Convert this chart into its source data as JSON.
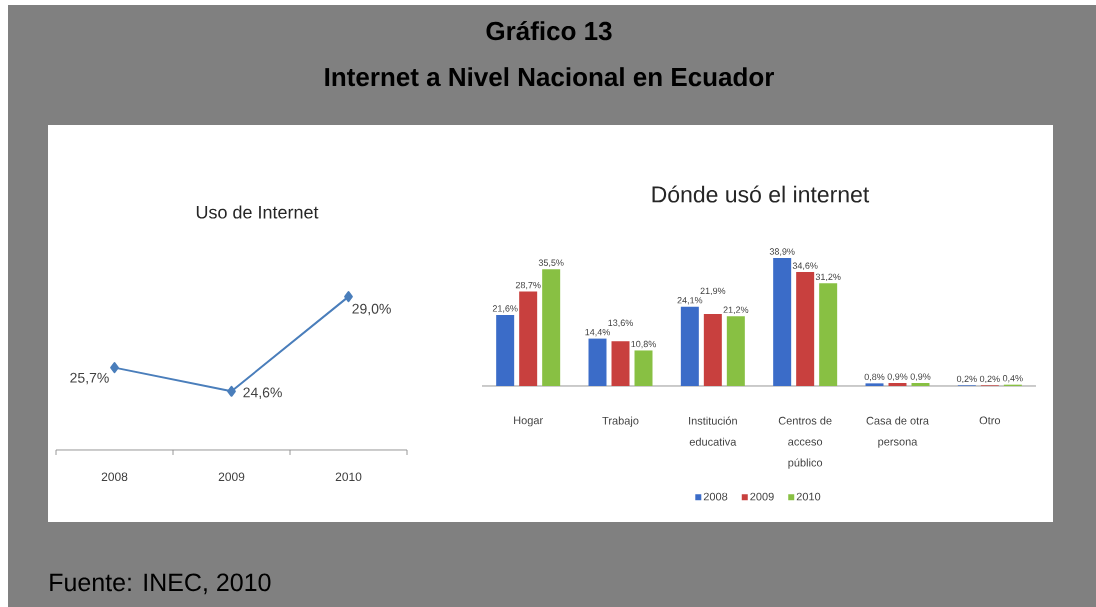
{
  "chart_data": [
    {
      "type": "other",
      "title": "Gráfico 13",
      "subtitle": "Internet a Nivel Nacional en  Ecuador",
      "annotations": [
        "Fuente: INEC, 2010"
      ]
    },
    {
      "type": "line",
      "title": "Uso de Internet",
      "categories": [
        "2008",
        "2009",
        "2010"
      ],
      "values": [
        25.7,
        24.6,
        29.0
      ],
      "value_labels": [
        "25,7%",
        "24,6%",
        "29,0%"
      ],
      "color": "#4a7ebb",
      "marker": "diamond"
    },
    {
      "type": "bar",
      "title": "Dónde usó el internet",
      "categories": [
        "Hogar",
        "Trabajo",
        "Institución educativa",
        "Centros de acceso público",
        "Casa de otra persona",
        "Otro"
      ],
      "series": [
        {
          "name": "2008",
          "color": "#3b6cc8",
          "values": [
            21.6,
            14.4,
            24.1,
            38.9,
            0.8,
            0.2
          ],
          "value_labels": [
            "21,6%",
            "14,4%",
            "24,1%",
            "38,9%",
            "0,8%",
            "0,2%"
          ]
        },
        {
          "name": "2009",
          "color": "#c8403e",
          "values": [
            28.7,
            13.6,
            21.9,
            34.6,
            0.9,
            0.2
          ],
          "value_labels": [
            "28,7%",
            "13,6%",
            "21,9%",
            "34,6%",
            "0,9%",
            "0,2%"
          ]
        },
        {
          "name": "2010",
          "color": "#88c043",
          "values": [
            35.5,
            10.8,
            21.2,
            31.2,
            0.9,
            0.4
          ],
          "value_labels": [
            "35,5%",
            "10,8%",
            "21,2%",
            "31,2%",
            "0,9%",
            "0,4%"
          ]
        }
      ],
      "legend": "bottom"
    }
  ]
}
